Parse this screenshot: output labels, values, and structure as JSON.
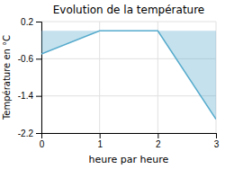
{
  "chart_data": {
    "type": "area",
    "title": "Evolution de la température",
    "xlabel": "heure par heure",
    "ylabel": "Température en °C",
    "x": [
      0,
      1,
      2,
      3
    ],
    "values": [
      -0.5,
      0.0,
      0.0,
      -1.9
    ],
    "color": "#55aacc",
    "xlim": [
      0,
      3
    ],
    "ylim": [
      -2.2,
      0.2
    ],
    "xticks": [
      0,
      1,
      2,
      3
    ],
    "yticks": [
      0.2,
      -0.6,
      -1.4,
      -2.2
    ],
    "grid": true
  }
}
